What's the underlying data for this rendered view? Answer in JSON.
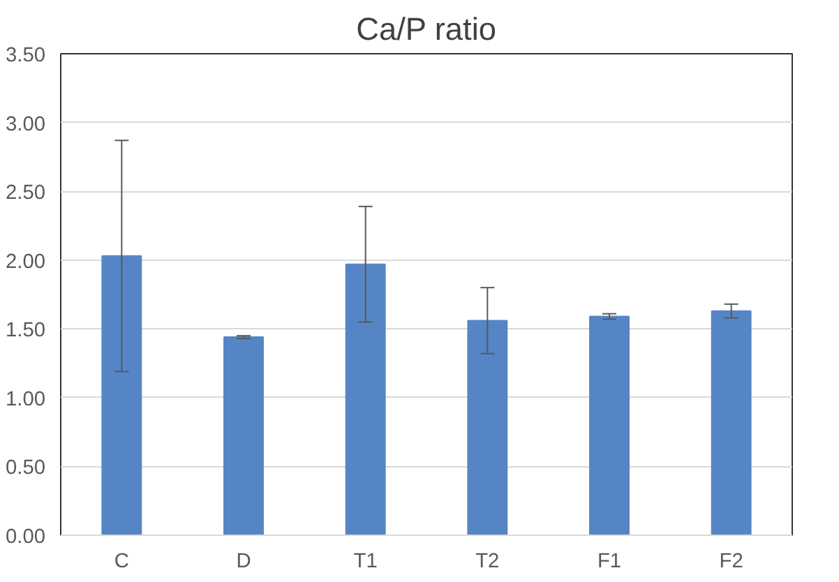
{
  "chart_data": {
    "type": "bar",
    "title": "Ca/P ratio",
    "categories": [
      "C",
      "D",
      "T1",
      "T2",
      "F1",
      "F2"
    ],
    "values": [
      2.03,
      1.44,
      1.97,
      1.56,
      1.59,
      1.63
    ],
    "errors": [
      0.84,
      0.01,
      0.42,
      0.24,
      0.02,
      0.05
    ],
    "color": "#5585c5",
    "ylim": [
      0,
      3.5
    ],
    "yticks": [
      {
        "value": 0,
        "label": "0.00"
      },
      {
        "value": 0.5,
        "label": "0.50"
      },
      {
        "value": 1,
        "label": "1.00"
      },
      {
        "value": 1.5,
        "label": "1.50"
      },
      {
        "value": 2,
        "label": "2.00"
      },
      {
        "value": 2.5,
        "label": "2.50"
      },
      {
        "value": 3,
        "label": "3.00"
      },
      {
        "value": 3.5,
        "label": "3.50"
      }
    ],
    "grid": "y"
  }
}
